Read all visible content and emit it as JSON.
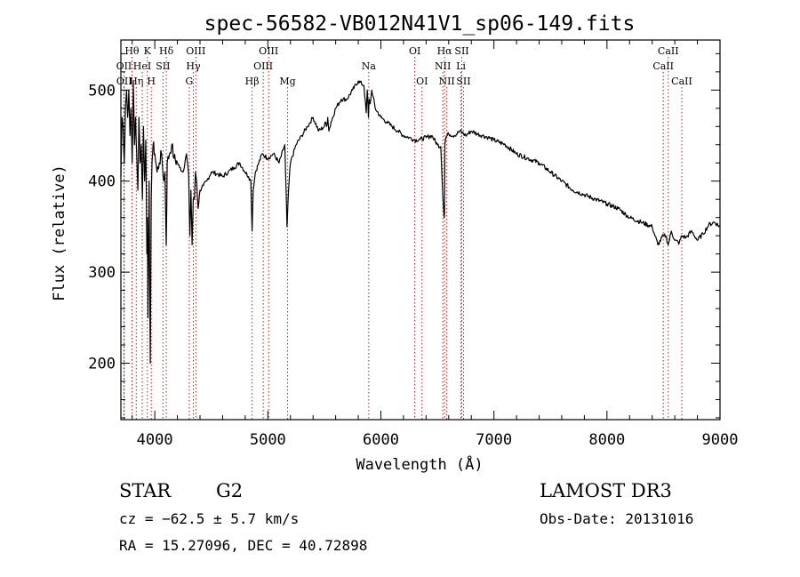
{
  "chart_data": {
    "type": "line",
    "title": "spec-56582-VB012N41V1_sp06-149.fits",
    "xlabel": "Wavelength (Å)",
    "ylabel": "Flux (relative)",
    "xlim": [
      3700,
      9000
    ],
    "ylim": [
      138,
      555
    ],
    "xticks": [
      4000,
      5000,
      6000,
      7000,
      8000,
      9000
    ],
    "yticks": [
      200,
      300,
      400,
      500
    ],
    "series": [
      {
        "name": "spectrum",
        "x": [
          3700,
          3710,
          3720,
          3730,
          3740,
          3750,
          3760,
          3770,
          3780,
          3790,
          3800,
          3810,
          3820,
          3830,
          3840,
          3850,
          3860,
          3870,
          3880,
          3890,
          3900,
          3910,
          3920,
          3930,
          3935,
          3940,
          3950,
          3960,
          3968,
          3975,
          3985,
          4000,
          4020,
          4040,
          4060,
          4080,
          4090,
          4101,
          4110,
          4130,
          4150,
          4170,
          4200,
          4220,
          4250,
          4280,
          4300,
          4310,
          4320,
          4330,
          4340,
          4350,
          4360,
          4370,
          4383,
          4400,
          4430,
          4460,
          4500,
          4550,
          4600,
          4650,
          4700,
          4750,
          4800,
          4830,
          4850,
          4861,
          4870,
          4890,
          4920,
          4950,
          5000,
          5050,
          5100,
          5150,
          5170,
          5183,
          5200,
          5250,
          5300,
          5350,
          5400,
          5450,
          5500,
          5510,
          5520,
          5530,
          5540,
          5560,
          5600,
          5650,
          5700,
          5750,
          5800,
          5850,
          5870,
          5880,
          5890,
          5896,
          5905,
          5920,
          5950,
          6000,
          6050,
          6100,
          6150,
          6200,
          6250,
          6300,
          6350,
          6400,
          6450,
          6500,
          6530,
          6550,
          6560,
          6563,
          6566,
          6575,
          6600,
          6650,
          6700,
          6750,
          6800,
          6850,
          6900,
          6950,
          7000,
          7100,
          7200,
          7300,
          7400,
          7500,
          7600,
          7700,
          7800,
          7900,
          8000,
          8100,
          8200,
          8300,
          8400,
          8450,
          8498,
          8520,
          8542,
          8570,
          8600,
          8640,
          8662,
          8700,
          8750,
          8800,
          8850,
          8900,
          8950,
          9000
        ],
        "y": [
          405,
          470,
          460,
          420,
          480,
          500,
          470,
          500,
          450,
          480,
          420,
          510,
          440,
          470,
          430,
          390,
          470,
          420,
          440,
          380,
          460,
          400,
          445,
          320,
          360,
          250,
          400,
          200,
          380,
          420,
          440,
          430,
          410,
          420,
          430,
          400,
          410,
          330,
          420,
          430,
          440,
          425,
          420,
          415,
          410,
          430,
          405,
          340,
          390,
          330,
          380,
          380,
          410,
          400,
          370,
          390,
          395,
          400,
          410,
          408,
          405,
          410,
          415,
          420,
          410,
          405,
          400,
          345,
          390,
          410,
          420,
          430,
          425,
          430,
          420,
          440,
          350,
          390,
          420,
          440,
          450,
          460,
          470,
          455,
          460,
          465,
          460,
          470,
          455,
          465,
          480,
          490,
          490,
          500,
          510,
          505,
          475,
          500,
          470,
          490,
          485,
          500,
          480,
          470,
          465,
          460,
          455,
          450,
          448,
          445,
          446,
          448,
          450,
          440,
          438,
          380,
          360,
          365,
          440,
          448,
          452,
          450,
          455,
          450,
          455,
          452,
          450,
          448,
          445,
          440,
          430,
          425,
          420,
          410,
          400,
          390,
          385,
          380,
          375,
          370,
          360,
          355,
          350,
          330,
          340,
          340,
          330,
          345,
          335,
          332,
          340,
          338,
          345,
          335,
          342,
          352,
          355,
          350
        ]
      }
    ],
    "line_markers": [
      {
        "label": "Hθ",
        "x": 3798,
        "row": 1
      },
      {
        "label": "OII",
        "x": 3727,
        "row": 2
      },
      {
        "label": "OII",
        "x": 3729,
        "row": 3
      },
      {
        "label": "Hη",
        "x": 3836,
        "row": 3
      },
      {
        "label": "HeI",
        "x": 3889,
        "row": 2
      },
      {
        "label": "K",
        "x": 3934,
        "row": 1
      },
      {
        "label": "H",
        "x": 3969,
        "row": 3
      },
      {
        "label": "SII",
        "x": 4072,
        "row": 2
      },
      {
        "label": "Hδ",
        "x": 4102,
        "row": 1
      },
      {
        "label": "OIII",
        "x": 4363,
        "row": 1
      },
      {
        "label": "Hγ",
        "x": 4341,
        "row": 2
      },
      {
        "label": "G",
        "x": 4305,
        "row": 3
      },
      {
        "label": "Hβ",
        "x": 4861,
        "row": 3
      },
      {
        "label": "OIII",
        "x": 5007,
        "row": 1
      },
      {
        "label": "OIII",
        "x": 4959,
        "row": 2
      },
      {
        "label": "Mg",
        "x": 5175,
        "row": 3
      },
      {
        "label": "Na",
        "x": 5893,
        "row": 2
      },
      {
        "label": "OI",
        "x": 6300,
        "row": 1
      },
      {
        "label": "OI",
        "x": 6364,
        "row": 3
      },
      {
        "label": "Hα",
        "x": 6563,
        "row": 1
      },
      {
        "label": "NII",
        "x": 6548,
        "row": 2
      },
      {
        "label": "NII",
        "x": 6583,
        "row": 3
      },
      {
        "label": "SII",
        "x": 6716,
        "row": 1
      },
      {
        "label": "Li",
        "x": 6708,
        "row": 2
      },
      {
        "label": "SII",
        "x": 6731,
        "row": 3
      },
      {
        "label": "CaII",
        "x": 8542,
        "row": 1
      },
      {
        "label": "CaII",
        "x": 8498,
        "row": 2
      },
      {
        "label": "CaII",
        "x": 8662,
        "row": 3
      }
    ]
  },
  "info": {
    "object_class": "STAR",
    "subclass": "G2",
    "survey": "LAMOST DR3",
    "redshift": "cz = −62.5 ± 5.7 km/s",
    "obs_date": "Obs-Date: 20131016",
    "coords": "RA =  15.27096, DEC =  40.72898"
  }
}
